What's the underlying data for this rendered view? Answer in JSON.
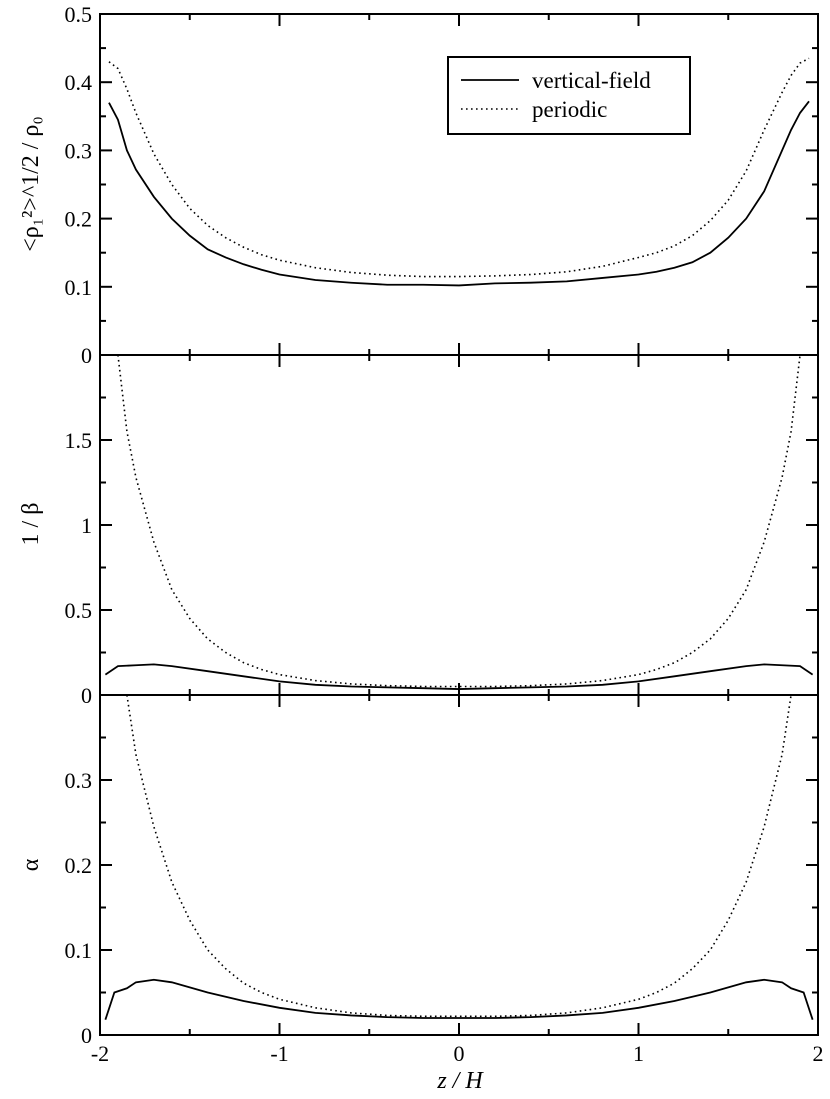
{
  "chart_data": {
    "type": "line",
    "xlabel": "z / H",
    "xlim": [
      -2,
      2
    ],
    "x_ticks": [
      -2,
      -1,
      0,
      1,
      2
    ],
    "x_tick_labels": [
      "-2",
      "-1",
      "0",
      "1",
      "2"
    ],
    "legend": {
      "placement": "top-right",
      "entries": [
        {
          "label": "vertical-field",
          "style": "solid"
        },
        {
          "label": "periodic",
          "style": "dotted"
        }
      ]
    },
    "panels": [
      {
        "id": "density",
        "ylabel": "<ρ₁²>^1/2 / ρ₀",
        "ylim": [
          0,
          0.5
        ],
        "y_ticks": [
          0,
          0.1,
          0.2,
          0.3,
          0.4,
          0.5
        ],
        "y_tick_labels": [
          "0",
          "0.1",
          "0.2",
          "0.3",
          "0.4",
          "0.5"
        ],
        "series": [
          {
            "name": "vertical-field",
            "style": "solid",
            "x": [
              -1.95,
              -1.9,
              -1.85,
              -1.8,
              -1.7,
              -1.6,
              -1.5,
              -1.4,
              -1.3,
              -1.2,
              -1.1,
              -1.0,
              -0.8,
              -0.6,
              -0.4,
              -0.2,
              0.0,
              0.2,
              0.4,
              0.6,
              0.8,
              1.0,
              1.1,
              1.2,
              1.3,
              1.4,
              1.5,
              1.6,
              1.7,
              1.8,
              1.85,
              1.9,
              1.95
            ],
            "y": [
              0.37,
              0.345,
              0.3,
              0.272,
              0.232,
              0.2,
              0.175,
              0.155,
              0.143,
              0.133,
              0.125,
              0.118,
              0.11,
              0.106,
              0.103,
              0.103,
              0.102,
              0.105,
              0.106,
              0.108,
              0.113,
              0.118,
              0.122,
              0.128,
              0.136,
              0.15,
              0.172,
              0.2,
              0.24,
              0.3,
              0.33,
              0.355,
              0.372
            ]
          },
          {
            "name": "periodic",
            "style": "dotted",
            "x": [
              -1.95,
              -1.9,
              -1.85,
              -1.8,
              -1.7,
              -1.6,
              -1.5,
              -1.4,
              -1.3,
              -1.2,
              -1.1,
              -1.0,
              -0.8,
              -0.6,
              -0.4,
              -0.2,
              0.0,
              0.2,
              0.4,
              0.6,
              0.8,
              1.0,
              1.1,
              1.2,
              1.3,
              1.4,
              1.5,
              1.6,
              1.7,
              1.8,
              1.85,
              1.9,
              1.95
            ],
            "y": [
              0.43,
              0.42,
              0.39,
              0.355,
              0.295,
              0.25,
              0.215,
              0.19,
              0.172,
              0.158,
              0.147,
              0.139,
              0.128,
              0.121,
              0.117,
              0.115,
              0.115,
              0.116,
              0.118,
              0.122,
              0.13,
              0.143,
              0.15,
              0.16,
              0.175,
              0.197,
              0.227,
              0.27,
              0.33,
              0.385,
              0.41,
              0.428,
              0.435
            ]
          }
        ]
      },
      {
        "id": "inverse-beta",
        "ylabel": "1 / β",
        "ylim": [
          0,
          2
        ],
        "y_ticks": [
          0,
          0.5,
          1,
          1.5
        ],
        "y_tick_labels": [
          "0",
          "0.5",
          "1",
          "1.5"
        ],
        "series": [
          {
            "name": "vertical-field",
            "style": "solid",
            "x": [
              -1.97,
              -1.9,
              -1.8,
              -1.7,
              -1.6,
              -1.4,
              -1.2,
              -1.0,
              -0.8,
              -0.6,
              -0.4,
              -0.2,
              0.0,
              0.2,
              0.4,
              0.6,
              0.8,
              1.0,
              1.2,
              1.4,
              1.6,
              1.7,
              1.8,
              1.9,
              1.97
            ],
            "y": [
              0.12,
              0.17,
              0.175,
              0.18,
              0.17,
              0.14,
              0.11,
              0.08,
              0.06,
              0.05,
              0.045,
              0.04,
              0.035,
              0.04,
              0.045,
              0.05,
              0.06,
              0.08,
              0.11,
              0.14,
              0.17,
              0.18,
              0.175,
              0.17,
              0.12
            ]
          },
          {
            "name": "periodic",
            "style": "dotted",
            "x": [
              -1.9,
              -1.85,
              -1.8,
              -1.7,
              -1.6,
              -1.5,
              -1.4,
              -1.3,
              -1.2,
              -1.1,
              -1.0,
              -0.8,
              -0.6,
              -0.4,
              -0.2,
              0.0,
              0.2,
              0.4,
              0.6,
              0.8,
              1.0,
              1.1,
              1.2,
              1.3,
              1.4,
              1.5,
              1.6,
              1.7,
              1.8,
              1.85,
              1.9
            ],
            "y": [
              2.0,
              1.55,
              1.28,
              0.9,
              0.62,
              0.45,
              0.33,
              0.25,
              0.19,
              0.15,
              0.12,
              0.085,
              0.065,
              0.055,
              0.05,
              0.05,
              0.05,
              0.055,
              0.065,
              0.085,
              0.12,
              0.15,
              0.19,
              0.25,
              0.33,
              0.45,
              0.62,
              0.9,
              1.28,
              1.55,
              2.0
            ]
          }
        ]
      },
      {
        "id": "alpha",
        "ylabel": "α",
        "ylim": [
          0,
          0.4
        ],
        "y_ticks": [
          0,
          0.1,
          0.2,
          0.3
        ],
        "y_tick_labels": [
          "0",
          "0.1",
          "0.2",
          "0.3"
        ],
        "series": [
          {
            "name": "vertical-field",
            "style": "solid",
            "x": [
              -1.97,
              -1.92,
              -1.85,
              -1.8,
              -1.7,
              -1.6,
              -1.4,
              -1.2,
              -1.0,
              -0.8,
              -0.6,
              -0.4,
              -0.2,
              0.0,
              0.2,
              0.4,
              0.6,
              0.8,
              1.0,
              1.2,
              1.4,
              1.6,
              1.7,
              1.8,
              1.85,
              1.92,
              1.97
            ],
            "y": [
              0.018,
              0.05,
              0.055,
              0.062,
              0.065,
              0.062,
              0.05,
              0.04,
              0.032,
              0.026,
              0.023,
              0.021,
              0.02,
              0.02,
              0.02,
              0.021,
              0.023,
              0.026,
              0.032,
              0.04,
              0.05,
              0.062,
              0.065,
              0.062,
              0.055,
              0.05,
              0.018
            ]
          },
          {
            "name": "periodic",
            "style": "dotted",
            "x": [
              -1.85,
              -1.8,
              -1.7,
              -1.6,
              -1.5,
              -1.4,
              -1.3,
              -1.2,
              -1.1,
              -1.0,
              -0.8,
              -0.6,
              -0.4,
              -0.2,
              0.0,
              0.2,
              0.4,
              0.6,
              0.8,
              1.0,
              1.1,
              1.2,
              1.3,
              1.4,
              1.5,
              1.6,
              1.7,
              1.8,
              1.85
            ],
            "y": [
              0.4,
              0.33,
              0.245,
              0.18,
              0.135,
              0.1,
              0.078,
              0.061,
              0.05,
              0.042,
              0.032,
              0.026,
              0.023,
              0.022,
              0.022,
              0.022,
              0.023,
              0.026,
              0.032,
              0.042,
              0.05,
              0.061,
              0.078,
              0.1,
              0.135,
              0.18,
              0.245,
              0.33,
              0.4
            ]
          }
        ]
      }
    ]
  }
}
